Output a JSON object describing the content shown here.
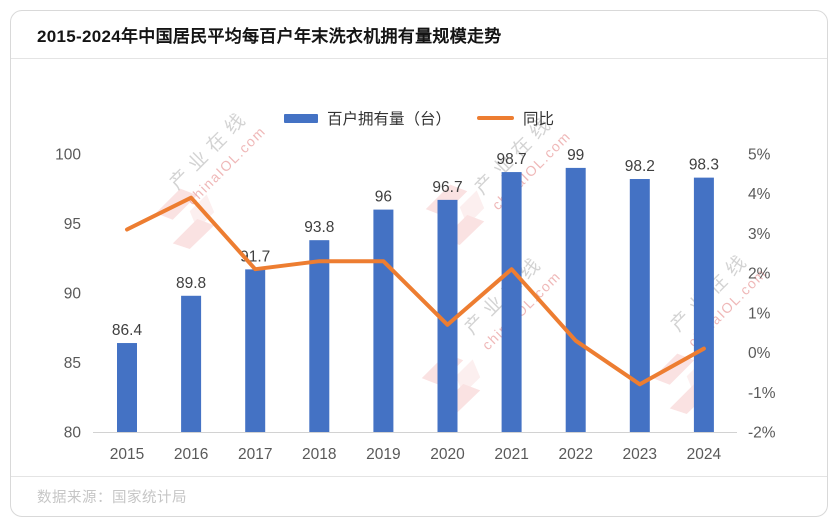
{
  "card": {
    "title": "2015-2024年中国居民平均每百户年末洗衣机拥有量规模走势",
    "source": "数据来源：国家统计局"
  },
  "legend": [
    {
      "label": "百户拥有量（台）",
      "type": "bar",
      "color": "#4472C4"
    },
    {
      "label": "同比",
      "type": "line",
      "color": "#ED7D31"
    }
  ],
  "watermark": {
    "cn": "产业在线",
    "en": "chinaIOL.com",
    "logo_color": "#e03a3a"
  },
  "colors": {
    "bar": "#4472C4",
    "line": "#ED7D31",
    "axis_text": "#595959",
    "bar_label": "#3f3f3f",
    "axis_line": "#d2d2d2"
  },
  "chart_data": {
    "type": "bar+line",
    "title": "2015-2024年中国居民平均每百户年末洗衣机拥有量规模走势",
    "categories": [
      "2015",
      "2016",
      "2017",
      "2018",
      "2019",
      "2020",
      "2021",
      "2022",
      "2023",
      "2024"
    ],
    "series": [
      {
        "name": "百户拥有量（台）",
        "type": "bar",
        "axis": "left",
        "color": "#4472C4",
        "values": [
          86.4,
          89.8,
          91.7,
          93.8,
          96,
          96.7,
          98.7,
          99,
          98.2,
          98.3
        ],
        "labels": [
          "86.4",
          "89.8",
          "91.7",
          "93.8",
          "96",
          "96.7",
          "98.7",
          "99",
          "98.2",
          "98.3"
        ]
      },
      {
        "name": "同比",
        "type": "line",
        "axis": "right",
        "color": "#ED7D31",
        "values": [
          3.1,
          3.9,
          2.1,
          2.3,
          2.3,
          0.7,
          2.1,
          0.3,
          -0.8,
          0.1
        ]
      }
    ],
    "left_axis": {
      "min": 80,
      "max": 100,
      "step": 5,
      "ticks": [
        "80",
        "85",
        "90",
        "95",
        "100"
      ]
    },
    "right_axis": {
      "min": -2,
      "max": 5,
      "step": 1,
      "ticks": [
        "-2%",
        "-1%",
        "0%",
        "1%",
        "2%",
        "3%",
        "4%",
        "5%"
      ]
    },
    "grid": false,
    "legend_position": "top-center"
  }
}
